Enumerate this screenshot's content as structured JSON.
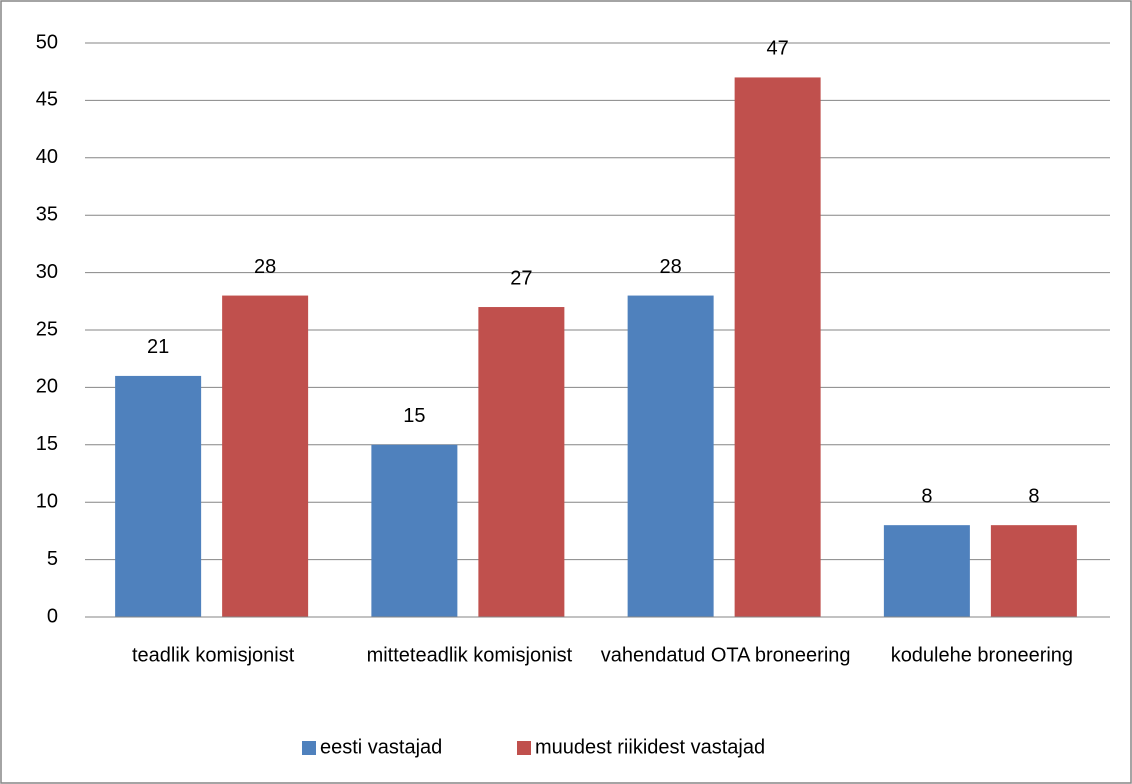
{
  "chart_data": {
    "type": "bar",
    "categories": [
      "teadlik komisjonist",
      "mitteteadlik komisjonist",
      "vahendatud OTA broneering",
      "kodulehe broneering"
    ],
    "series": [
      {
        "name": "eesti vastajad",
        "color": "#4f81bd",
        "values": [
          21,
          15,
          28,
          8
        ]
      },
      {
        "name": "muudest riikidest vastajad",
        "color": "#c0504d",
        "values": [
          28,
          27,
          47,
          8
        ]
      }
    ],
    "ylim": [
      0,
      50
    ],
    "yticks": [
      0,
      5,
      10,
      15,
      20,
      25,
      30,
      35,
      40,
      45,
      50
    ],
    "grid": true,
    "legend": "bottom",
    "data_labels": true
  }
}
